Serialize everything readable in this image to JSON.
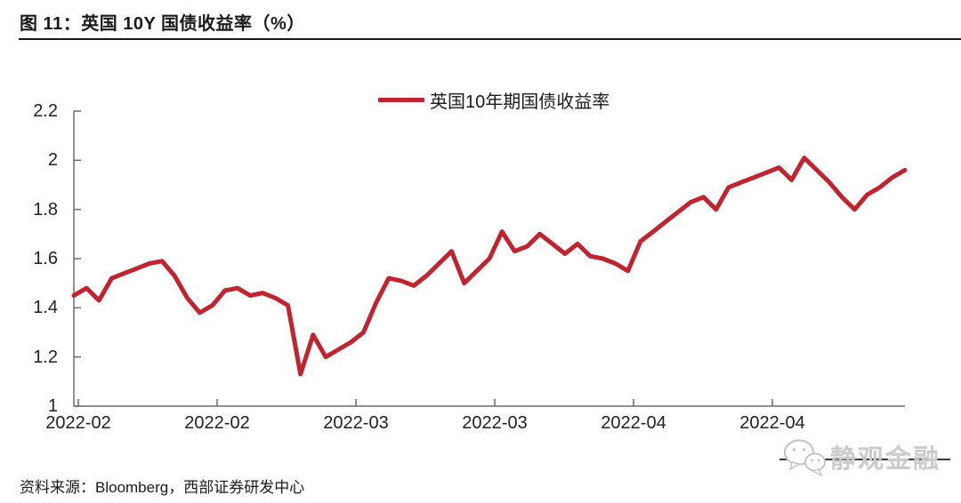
{
  "figure": {
    "title": "图 11：英国 10Y 国债收益率（%）",
    "source": "资料来源：Bloomberg，西部证券研发中心",
    "watermark": "静观金融"
  },
  "chart_data": {
    "type": "line",
    "title": "图 11：英国 10Y 国债收益率（%）",
    "legend_position": "top-center",
    "grid": false,
    "line_color": "#c2232e",
    "axis_color": "#6b6b6b",
    "ylim": [
      1,
      2.2
    ],
    "y_ticks": [
      2.2,
      2,
      1.8,
      1.6,
      1.4,
      1.2,
      1
    ],
    "x_tick_labels": [
      "2022-02",
      "2022-02",
      "2022-03",
      "2022-03",
      "2022-04",
      "2022-04"
    ],
    "series": [
      {
        "name": "英国10年期国债收益率",
        "values": [
          1.45,
          1.48,
          1.43,
          1.52,
          1.54,
          1.56,
          1.58,
          1.59,
          1.53,
          1.44,
          1.38,
          1.41,
          1.47,
          1.48,
          1.45,
          1.46,
          1.44,
          1.41,
          1.13,
          1.29,
          1.2,
          1.23,
          1.26,
          1.3,
          1.42,
          1.52,
          1.51,
          1.49,
          1.53,
          1.58,
          1.63,
          1.5,
          1.55,
          1.6,
          1.71,
          1.63,
          1.65,
          1.7,
          1.66,
          1.62,
          1.66,
          1.61,
          1.6,
          1.58,
          1.55,
          1.67,
          1.71,
          1.75,
          1.79,
          1.83,
          1.85,
          1.8,
          1.89,
          1.91,
          1.93,
          1.95,
          1.97,
          1.92,
          2.01,
          1.96,
          1.91,
          1.85,
          1.8,
          1.86,
          1.89,
          1.93,
          1.96
        ]
      }
    ]
  }
}
